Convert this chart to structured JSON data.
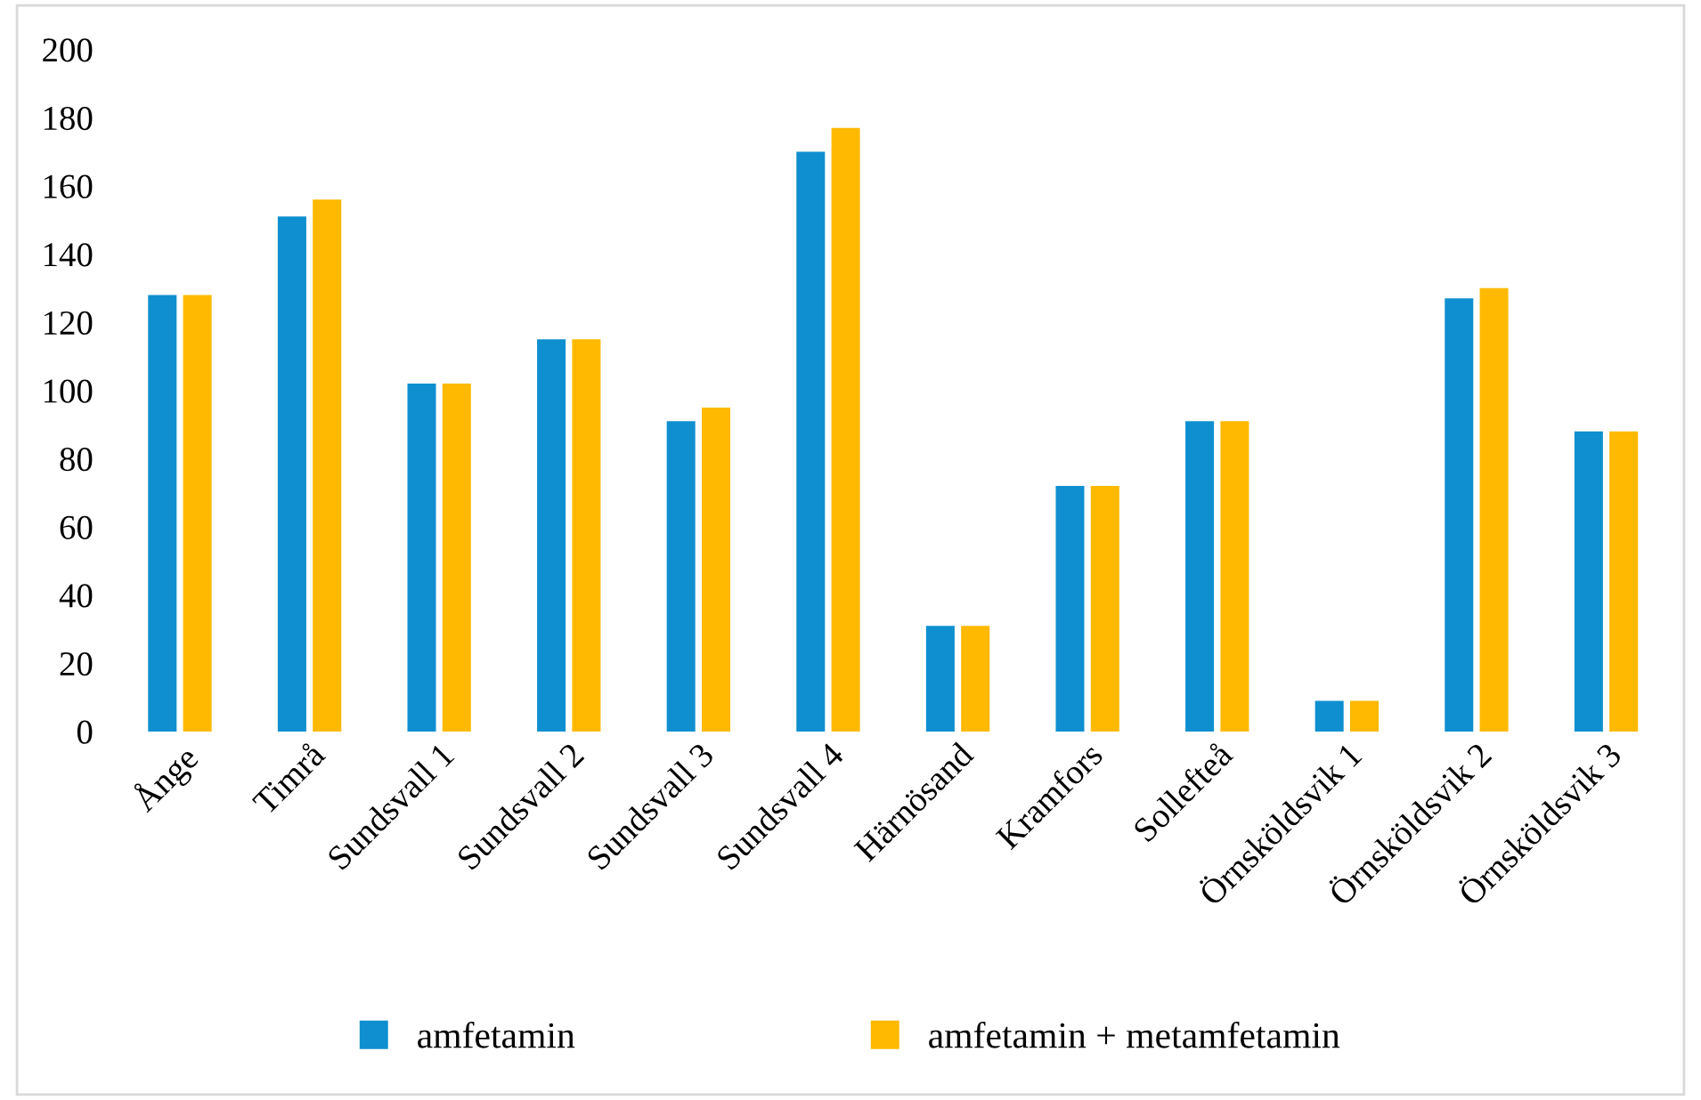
{
  "chart_data": {
    "type": "bar",
    "categories": [
      "Ånge",
      "Timrå",
      "Sundsvall 1",
      "Sundsvall 2",
      "Sundsvall 3",
      "Sundsvall 4",
      "Härnösand",
      "Kramfors",
      "Sollefteå",
      "Örnsköldsvik 1",
      "Örnsköldsvik 2",
      "Örnsköldsvik 3"
    ],
    "series": [
      {
        "name": "amfetamin",
        "color": "#0f8fd0",
        "values": [
          128,
          151,
          102,
          115,
          91,
          170,
          31,
          72,
          91,
          9,
          127,
          88
        ]
      },
      {
        "name": "amfetamin + metamfetamin",
        "color": "#ffb900",
        "values": [
          128,
          156,
          102,
          115,
          95,
          177,
          31,
          72,
          91,
          9,
          130,
          88
        ]
      }
    ],
    "ylim": [
      0,
      200
    ],
    "yticks": [
      0,
      20,
      40,
      60,
      80,
      100,
      120,
      140,
      160,
      180,
      200
    ],
    "grid": false,
    "legend": "bottom"
  }
}
